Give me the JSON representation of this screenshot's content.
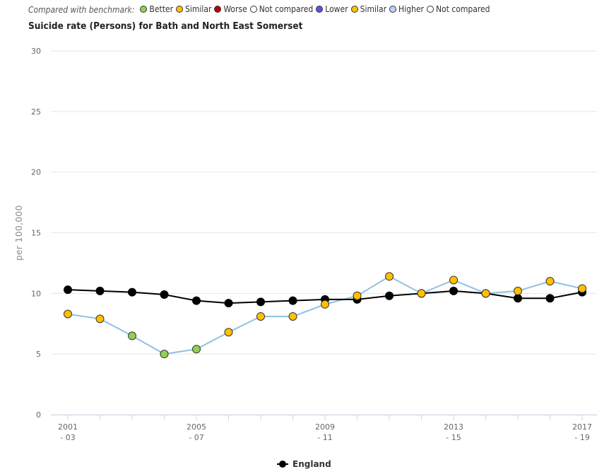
{
  "benchmark_legend": {
    "caption": "Compared with benchmark:",
    "items": [
      {
        "label": "Better",
        "color": "#92d050"
      },
      {
        "label": "Similar",
        "color": "#ffc000"
      },
      {
        "label": "Worse",
        "color": "#c00000"
      },
      {
        "label": "Not compared",
        "color": "#ffffff"
      },
      {
        "label": "Lower",
        "color": "#5555e6"
      },
      {
        "label": "Similar",
        "color": "#ffc000"
      },
      {
        "label": "Higher",
        "color": "#bed2ff"
      },
      {
        "label": "Not compared",
        "color": "#ffffff"
      }
    ]
  },
  "chart_data": {
    "type": "line",
    "title": "Suicide rate (Persons) for Bath and North East Somerset",
    "ylabel": "per 100,000",
    "ylim": [
      0,
      30
    ],
    "yticks": [
      0,
      5,
      10,
      15,
      20,
      25,
      30
    ],
    "grid": true,
    "legend_position": "bottom",
    "x": [
      "2001 - 03",
      "2002 - 04",
      "2003 - 05",
      "2004 - 06",
      "2005 - 07",
      "2006 - 08",
      "2007 - 09",
      "2008 - 10",
      "2009 - 11",
      "2010 - 12",
      "2011 - 13",
      "2012 - 14",
      "2013 - 15",
      "2014 - 16",
      "2015 - 17",
      "2016 - 18",
      "2017 - 19"
    ],
    "xtick_labels": [
      {
        "index": 0,
        "line1": "2001",
        "line2": "- 03"
      },
      {
        "index": 4,
        "line1": "2005",
        "line2": "- 07"
      },
      {
        "index": 8,
        "line1": "2009",
        "line2": "- 11"
      },
      {
        "index": 12,
        "line1": "2013",
        "line2": "- 15"
      },
      {
        "index": 16,
        "line1": "2017",
        "line2": "- 19"
      }
    ],
    "series": [
      {
        "line_color": "#92c0e0",
        "values": [
          8.3,
          7.9,
          6.5,
          5.0,
          5.4,
          6.8,
          8.1,
          8.1,
          9.1,
          9.8,
          11.4,
          10.0,
          11.1,
          10.0,
          10.2,
          11.0,
          10.4
        ],
        "point_colors": [
          "#ffc000",
          "#ffc000",
          "#92d050",
          "#92d050",
          "#92d050",
          "#ffc000",
          "#ffc000",
          "#ffc000",
          "#ffc000",
          "#ffc000",
          "#ffc000",
          "#ffc000",
          "#ffc000",
          "#ffc000",
          "#ffc000",
          "#ffc000",
          "#ffc000"
        ]
      },
      {
        "name": "England",
        "line_color": "#000000",
        "values": [
          10.3,
          10.2,
          10.1,
          9.9,
          9.4,
          9.2,
          9.3,
          9.4,
          9.5,
          9.5,
          9.8,
          10.0,
          10.2,
          10.0,
          9.6,
          9.6,
          10.1
        ],
        "point_color": "#000000"
      }
    ]
  }
}
